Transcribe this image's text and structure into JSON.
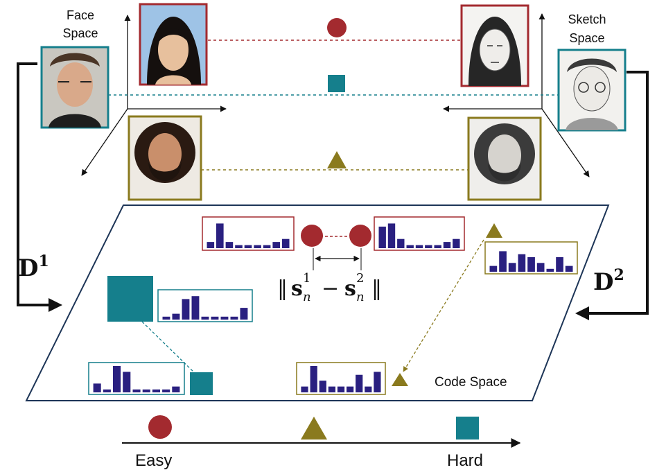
{
  "labels": {
    "face_space_line1": "Face",
    "face_space_line2": "Space",
    "sketch_space_line1": "Sketch",
    "sketch_space_line2": "Space",
    "code_space": "Code Space",
    "d1_base": "D",
    "d1_sup": "1",
    "d2_base": "D",
    "d2_sup": "2",
    "formula_s": "s",
    "formula_sub": "n",
    "formula_sup1": "1",
    "formula_sup2": "2",
    "formula_minus": "−",
    "easy": "Easy",
    "hard": "Hard"
  },
  "colors": {
    "red": "#a32a2f",
    "teal": "#157f8c",
    "olive": "#8a7a1e",
    "navy": "#1d3557",
    "bar": "#2a2080",
    "black": "#111111"
  },
  "histograms": {
    "face_red": [
      2,
      8,
      2,
      1,
      1,
      1,
      1,
      2,
      3
    ],
    "sketch_red": [
      7,
      8,
      3,
      1,
      1,
      1,
      1,
      2,
      3
    ],
    "sketch_olive": [
      2,
      7,
      3,
      6,
      5,
      3,
      1,
      5,
      2
    ],
    "face_teal_large": [
      1,
      2,
      7,
      8,
      1,
      1,
      1,
      1,
      4
    ],
    "face_teal_small": [
      3,
      1,
      9,
      7,
      1,
      1,
      1,
      1,
      2
    ],
    "face_olive": [
      2,
      9,
      4,
      2,
      2,
      2,
      6,
      2,
      7
    ]
  },
  "difficulty_scale": [
    "circle",
    "triangle",
    "square"
  ]
}
